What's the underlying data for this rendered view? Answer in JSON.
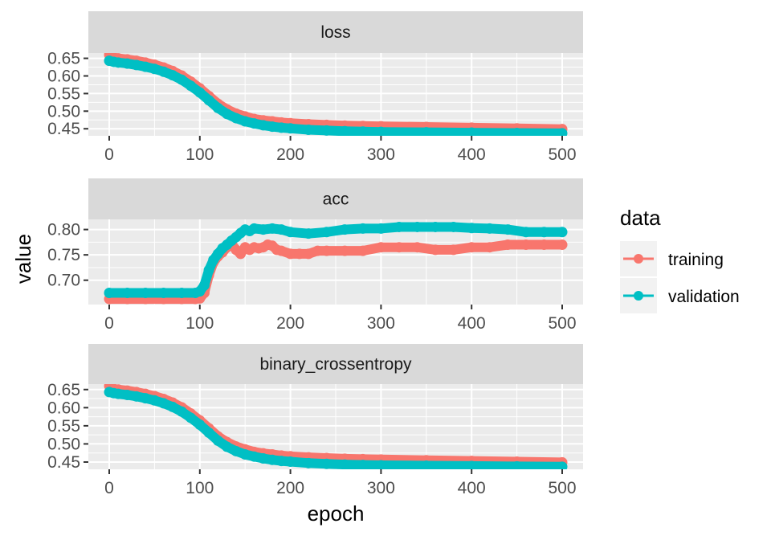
{
  "chart_data": {
    "type": "line",
    "x_label": "epoch",
    "y_label": "value",
    "x_range": [
      0,
      500
    ],
    "x_ticks": [
      0,
      100,
      200,
      300,
      400,
      500
    ],
    "grid": true,
    "legend_position": "right",
    "legend": {
      "title": "data",
      "entries": [
        {
          "name": "training",
          "color": "#F8766D"
        },
        {
          "name": "validation",
          "color": "#00BFC4"
        }
      ]
    },
    "colors": {
      "training": "#F8766D",
      "validation": "#00BFC4",
      "panel": "#EBEBEB",
      "strip": "#D9D9D9"
    },
    "panels": [
      {
        "title": "loss",
        "y_range": [
          0.43,
          0.665
        ],
        "y_ticks": [
          0.45,
          0.5,
          0.55,
          0.6,
          0.65
        ],
        "y_tick_labels": [
          "0.45",
          "0.50",
          "0.55",
          "0.60",
          "0.65"
        ],
        "series": [
          {
            "name": "training",
            "x": [
              0,
              5,
              10,
              20,
              30,
              40,
              50,
              60,
              70,
              80,
              90,
              100,
              110,
              120,
              130,
              140,
              150,
              160,
              170,
              180,
              190,
              200,
              220,
              240,
              260,
              280,
              300,
              350,
              400,
              450,
              500
            ],
            "y": [
              0.66,
              0.652,
              0.65,
              0.647,
              0.643,
              0.638,
              0.632,
              0.624,
              0.614,
              0.601,
              0.584,
              0.565,
              0.543,
              0.521,
              0.505,
              0.493,
              0.485,
              0.478,
              0.474,
              0.471,
              0.468,
              0.466,
              0.463,
              0.461,
              0.459,
              0.458,
              0.457,
              0.455,
              0.453,
              0.451,
              0.449
            ]
          },
          {
            "name": "validation",
            "x": [
              0,
              5,
              10,
              20,
              30,
              40,
              50,
              60,
              70,
              80,
              90,
              100,
              110,
              120,
              130,
              140,
              150,
              160,
              170,
              180,
              190,
              200,
              220,
              240,
              260,
              280,
              300,
              350,
              400,
              450,
              500
            ],
            "y": [
              0.643,
              0.64,
              0.638,
              0.635,
              0.631,
              0.626,
              0.62,
              0.612,
              0.602,
              0.589,
              0.572,
              0.553,
              0.531,
              0.509,
              0.492,
              0.48,
              0.471,
              0.465,
              0.46,
              0.456,
              0.453,
              0.451,
              0.447,
              0.445,
              0.443,
              0.442,
              0.441,
              0.44,
              0.439,
              0.438,
              0.437
            ]
          }
        ]
      },
      {
        "title": "acc",
        "y_range": [
          0.652,
          0.82
        ],
        "y_ticks": [
          0.7,
          0.75,
          0.8
        ],
        "y_tick_labels": [
          "0.70",
          "0.75",
          "0.80"
        ],
        "series": [
          {
            "name": "training",
            "x": [
              0,
              20,
              40,
              60,
              80,
              95,
              100,
              105,
              110,
              115,
              120,
              125,
              130,
              135,
              140,
              145,
              150,
              155,
              160,
              165,
              170,
              175,
              180,
              185,
              190,
              200,
              210,
              220,
              230,
              240,
              260,
              280,
              300,
              320,
              340,
              360,
              380,
              400,
              420,
              440,
              460,
              480,
              500
            ],
            "y": [
              0.663,
              0.663,
              0.663,
              0.663,
              0.663,
              0.663,
              0.664,
              0.675,
              0.71,
              0.735,
              0.747,
              0.755,
              0.765,
              0.772,
              0.76,
              0.752,
              0.765,
              0.76,
              0.765,
              0.763,
              0.765,
              0.77,
              0.768,
              0.76,
              0.758,
              0.752,
              0.752,
              0.752,
              0.758,
              0.758,
              0.758,
              0.758,
              0.765,
              0.765,
              0.765,
              0.76,
              0.76,
              0.765,
              0.765,
              0.77,
              0.77,
              0.77,
              0.77
            ]
          },
          {
            "name": "validation",
            "x": [
              0,
              20,
              40,
              60,
              80,
              95,
              100,
              105,
              110,
              115,
              120,
              125,
              130,
              135,
              140,
              145,
              150,
              155,
              160,
              170,
              180,
              190,
              200,
              220,
              240,
              260,
              280,
              300,
              320,
              340,
              360,
              380,
              400,
              420,
              440,
              460,
              480,
              500
            ],
            "y": [
              0.675,
              0.675,
              0.675,
              0.675,
              0.675,
              0.675,
              0.678,
              0.69,
              0.72,
              0.74,
              0.752,
              0.763,
              0.77,
              0.778,
              0.785,
              0.793,
              0.8,
              0.797,
              0.802,
              0.8,
              0.802,
              0.8,
              0.795,
              0.792,
              0.795,
              0.8,
              0.802,
              0.802,
              0.805,
              0.805,
              0.805,
              0.805,
              0.803,
              0.802,
              0.8,
              0.795,
              0.795,
              0.795
            ]
          }
        ]
      },
      {
        "title": "binary_crossentropy",
        "y_range": [
          0.43,
          0.665
        ],
        "y_ticks": [
          0.45,
          0.5,
          0.55,
          0.6,
          0.65
        ],
        "y_tick_labels": [
          "0.45",
          "0.50",
          "0.55",
          "0.60",
          "0.65"
        ],
        "series": [
          {
            "name": "training",
            "x": [
              0,
              5,
              10,
              20,
              30,
              40,
              50,
              60,
              70,
              80,
              90,
              100,
              110,
              120,
              130,
              140,
              150,
              160,
              170,
              180,
              190,
              200,
              220,
              240,
              260,
              280,
              300,
              350,
              400,
              450,
              500
            ],
            "y": [
              0.66,
              0.652,
              0.65,
              0.647,
              0.643,
              0.638,
              0.632,
              0.624,
              0.614,
              0.601,
              0.584,
              0.565,
              0.543,
              0.521,
              0.505,
              0.493,
              0.485,
              0.478,
              0.474,
              0.471,
              0.468,
              0.466,
              0.463,
              0.461,
              0.459,
              0.458,
              0.457,
              0.455,
              0.453,
              0.451,
              0.449
            ]
          },
          {
            "name": "validation",
            "x": [
              0,
              5,
              10,
              20,
              30,
              40,
              50,
              60,
              70,
              80,
              90,
              100,
              110,
              120,
              130,
              140,
              150,
              160,
              170,
              180,
              190,
              200,
              220,
              240,
              260,
              280,
              300,
              350,
              400,
              450,
              500
            ],
            "y": [
              0.643,
              0.64,
              0.638,
              0.635,
              0.631,
              0.626,
              0.62,
              0.612,
              0.602,
              0.589,
              0.572,
              0.553,
              0.531,
              0.509,
              0.492,
              0.48,
              0.471,
              0.465,
              0.46,
              0.456,
              0.453,
              0.451,
              0.447,
              0.445,
              0.443,
              0.442,
              0.441,
              0.44,
              0.439,
              0.438,
              0.437
            ]
          }
        ]
      }
    ]
  }
}
